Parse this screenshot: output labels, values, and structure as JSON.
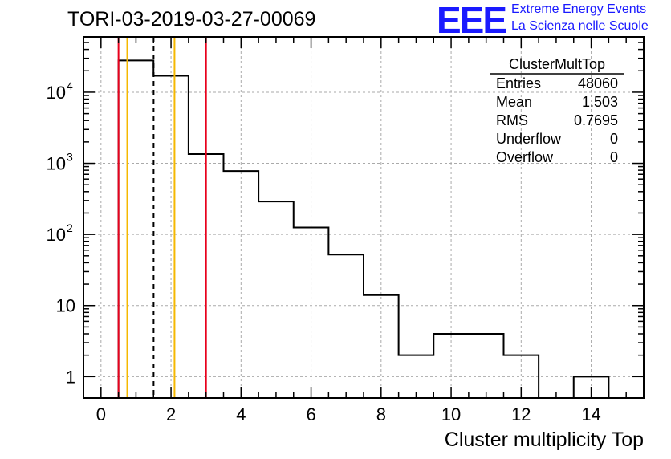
{
  "header": {
    "title": "TORI-03-2019-03-27-00069",
    "logo_text": "EEE",
    "logo_line1": "Extreme Energy Events",
    "logo_line2": "La Scienza nelle Scuole",
    "logo_color": "#1a1aff"
  },
  "chart_data": {
    "type": "histogram",
    "title": "TORI-03-2019-03-27-00069",
    "xlabel": "Cluster multiplicity Top",
    "ylabel": "",
    "xlim": [
      -0.5,
      15.5
    ],
    "ylim": [
      0.5,
      60000
    ],
    "yscale": "log",
    "grid": true,
    "bin_edges": [
      0.5,
      1.5,
      2.5,
      3.5,
      4.5,
      5.5,
      6.5,
      7.5,
      8.5,
      9.5,
      10.5,
      11.5,
      12.5,
      13.5,
      14.5
    ],
    "counts": [
      28000,
      17000,
      1350,
      780,
      290,
      125,
      52,
      14,
      2,
      4,
      4,
      2,
      0,
      1
    ],
    "x_ticks": [
      0,
      2,
      4,
      6,
      8,
      10,
      12,
      14
    ],
    "y_ticks": [
      {
        "value": 1,
        "label": "1"
      },
      {
        "value": 10,
        "label": "10"
      },
      {
        "value": 100,
        "label": "10",
        "exp": "2"
      },
      {
        "value": 1000,
        "label": "10",
        "exp": "3"
      },
      {
        "value": 10000,
        "label": "10",
        "exp": "4"
      }
    ],
    "vertical_lines": [
      {
        "x": 0.5,
        "color": "#e8001c",
        "style": "solid"
      },
      {
        "x": 0.75,
        "color": "#f5b800",
        "style": "solid"
      },
      {
        "x": 1.503,
        "color": "#000000",
        "style": "dashed"
      },
      {
        "x": 2.1,
        "color": "#f5b800",
        "style": "solid"
      },
      {
        "x": 3.0,
        "color": "#e8001c",
        "style": "solid"
      }
    ],
    "stats_box": {
      "title": "ClusterMultTop",
      "rows": [
        {
          "label": "Entries",
          "value": "48060"
        },
        {
          "label": "Mean",
          "value": "1.503"
        },
        {
          "label": "RMS",
          "value": "0.7695"
        },
        {
          "label": "Underflow",
          "value": "0"
        },
        {
          "label": "Overflow",
          "value": "0"
        }
      ]
    }
  }
}
